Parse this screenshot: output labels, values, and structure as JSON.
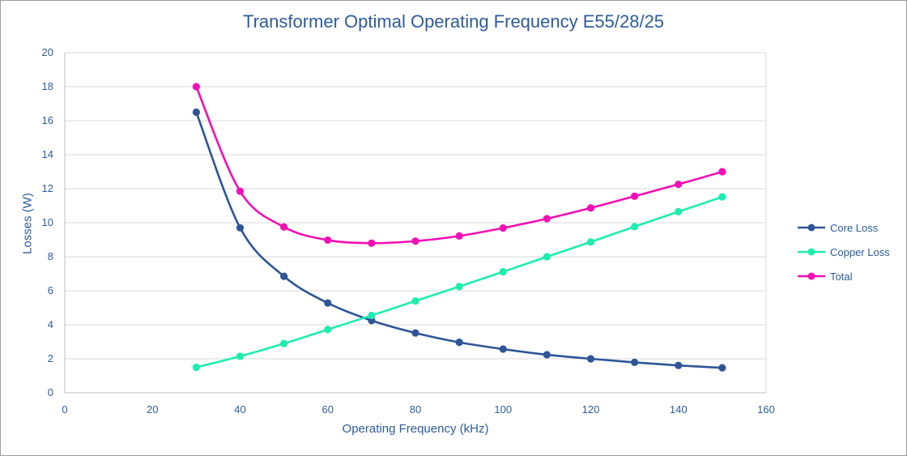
{
  "chart_data": {
    "type": "line",
    "title": "Transformer Optimal Operating Frequency E55/28/25",
    "xlabel": "Operating Frequency (kHz)",
    "ylabel": "Losses (W)",
    "xlim": [
      0,
      160
    ],
    "ylim": [
      0,
      20
    ],
    "x_ticks": [
      "0",
      "20",
      "40",
      "60",
      "80",
      "100",
      "120",
      "140",
      "160"
    ],
    "y_ticks": [
      "0",
      "2",
      "4",
      "6",
      "8",
      "10",
      "12",
      "14",
      "16",
      "18",
      "20"
    ],
    "grid": "horizontal",
    "legend_position": "right",
    "x": [
      30,
      40,
      50,
      60,
      70,
      80,
      90,
      100,
      110,
      120,
      130,
      140,
      150
    ],
    "series": [
      {
        "name": "Core Loss",
        "color": "#2e5597",
        "values": [
          16.5,
          9.7,
          6.85,
          5.28,
          4.25,
          3.52,
          2.97,
          2.57,
          2.24,
          2.0,
          1.79,
          1.61,
          1.47
        ]
      },
      {
        "name": "Copper Loss",
        "color": "#1dedae",
        "values": [
          1.5,
          2.15,
          2.9,
          3.72,
          4.55,
          5.4,
          6.25,
          7.12,
          8.0,
          8.87,
          9.77,
          10.65,
          11.52
        ]
      },
      {
        "name": "Total",
        "color": "#f20fb4",
        "values": [
          18.0,
          11.85,
          9.75,
          8.98,
          8.8,
          8.92,
          9.22,
          9.69,
          10.24,
          10.87,
          11.56,
          12.26,
          13.0
        ]
      }
    ]
  }
}
